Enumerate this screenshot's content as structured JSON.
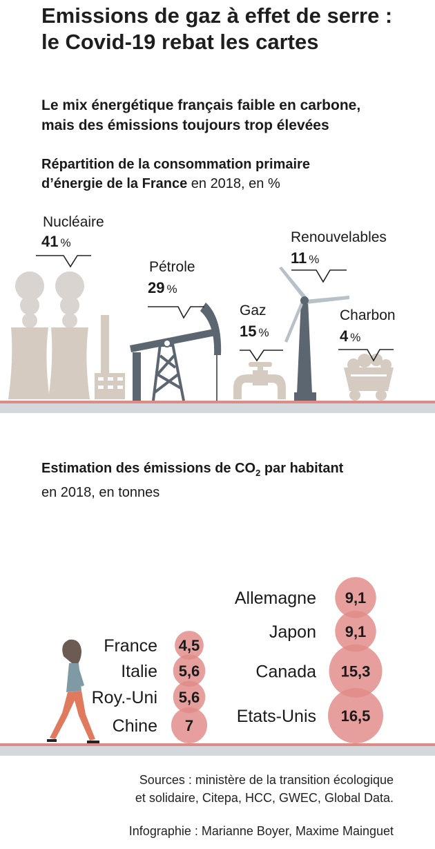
{
  "title_line1": "Emissions de gaz à effet de serre :",
  "title_line2": "le Covid-19 rebat les cartes",
  "section1_line1": "Le mix énergétique français faible en carbone,",
  "section1_line2": "mais des émissions toujours trop élevées",
  "chart_data": [
    {
      "type": "table",
      "title_line1": "Répartition de la consommation primaire",
      "title_line2_bold": "d’énergie de la France",
      "title_line2_rest": " en 2018, en %",
      "unit": "%",
      "categories": [
        "Nucléaire",
        "Pétrole",
        "Gaz",
        "Renouvelables",
        "Charbon"
      ],
      "values": [
        41,
        29,
        15,
        11,
        4
      ]
    },
    {
      "type": "scatter",
      "title_bold_part1": "Estimation des émissions de CO",
      "title_bold_subscript": "2",
      "title_bold_part2": " par habitant",
      "subtitle": "en 2018, en tonnes",
      "bubble_color": "#e08a86",
      "overlap_color": "#d9534f",
      "left_column": {
        "categories": [
          "France",
          "Italie",
          "Roy.-Uni",
          "Chine"
        ],
        "values": [
          4.5,
          5.6,
          5.6,
          7
        ],
        "value_labels": [
          "4,5",
          "5,6",
          "5,6",
          "7"
        ]
      },
      "right_column": {
        "categories": [
          "Allemagne",
          "Japon",
          "Canada",
          "Etats-Unis"
        ],
        "values": [
          9.1,
          9.1,
          15.3,
          16.5
        ],
        "value_labels": [
          "9,1",
          "9,1",
          "15,3",
          "16,5"
        ]
      }
    }
  ],
  "sources_line1": "Sources : ministère de la transition écologique",
  "sources_line2": "et solidaire, Citepa, HCC, GWEC, Global Data.",
  "credits": "Infographie : Marianne Boyer, Maxime Mainguet",
  "colors": {
    "illustration_beige": "#d5cbc1",
    "illustration_dark": "#5c6670",
    "ground_line": "#e08a86",
    "ground_band": "#d4d8dc",
    "figure_jacket": "#7f9aa5",
    "figure_trousers": "#e07a5f",
    "figure_hair": "#6b5b52"
  }
}
